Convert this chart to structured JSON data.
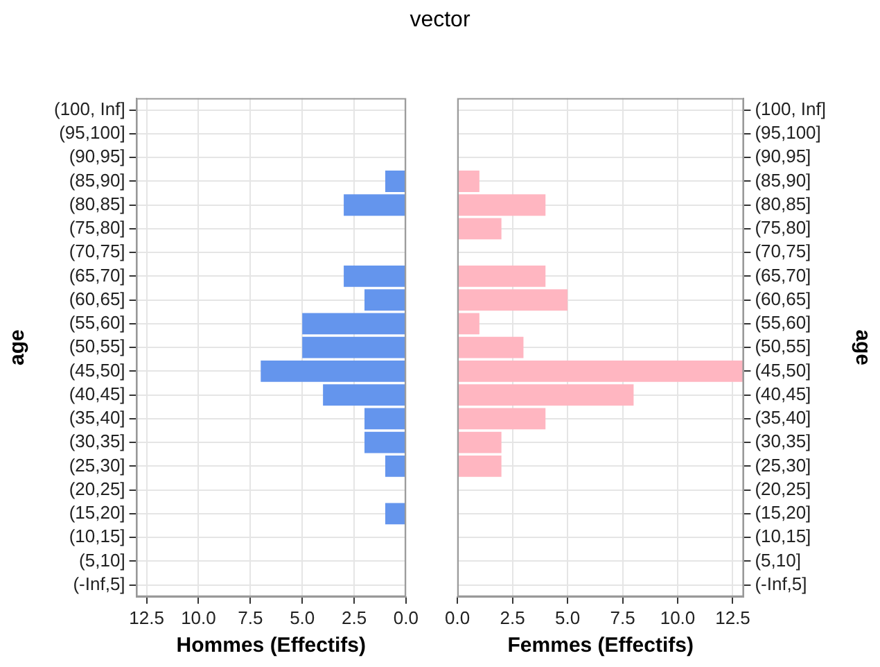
{
  "chart_data": [
    {
      "type": "bar",
      "orientation": "horizontal",
      "title": "vector",
      "xlabel": "Hommes (Effectifs)",
      "ylabel": "age",
      "grid": true,
      "color": "#6495ed",
      "categories": [
        "(100, Inf]",
        "(95,100]",
        "(90,95]",
        "(85,90]",
        "(80,85]",
        "(75,80]",
        "(70,75]",
        "(65,70]",
        "(60,65]",
        "(55,60]",
        "(50,55]",
        "(45,50]",
        "(40,45]",
        "(35,40]",
        "(30,35]",
        "(25,30]",
        "(20,25]",
        "(15,20]",
        "(10,15]",
        "(5,10]",
        "(-Inf,5]"
      ],
      "values": [
        0,
        0,
        0,
        1,
        3,
        0,
        0,
        3,
        2,
        5,
        5,
        7,
        4,
        2,
        2,
        1,
        0,
        1,
        0,
        0,
        0
      ],
      "xlim": [
        13,
        0
      ],
      "xticks": [
        12.5,
        {
          "value": 10,
          "label": "10.0"
        },
        7.5,
        {
          "value": 5,
          "label": "5.0"
        },
        2.5,
        {
          "value": 0,
          "label": "0.0"
        }
      ]
    },
    {
      "type": "bar",
      "orientation": "horizontal",
      "xlabel": "Femmes (Effectifs)",
      "ylabel": "age",
      "grid": true,
      "color": "#ffb6c1",
      "categories": [
        "(100, Inf]",
        "(95,100]",
        "(90,95]",
        "(85,90]",
        "(80,85]",
        "(75,80]",
        "(70,75]",
        "(65,70]",
        "(60,65]",
        "(55,60]",
        "(50,55]",
        "(45,50]",
        "(40,45]",
        "(35,40]",
        "(30,35]",
        "(25,30]",
        "(20,25]",
        "(15,20]",
        "(10,15]",
        "(5,10]",
        "(-Inf,5]"
      ],
      "values": [
        0,
        0,
        0,
        1,
        4,
        2,
        0,
        4,
        5,
        1,
        3,
        13,
        8,
        4,
        2,
        2,
        0,
        0,
        0,
        0,
        0
      ],
      "xlim": [
        0,
        13
      ],
      "xticks": [
        {
          "value": 0,
          "label": "0.0"
        },
        2.5,
        {
          "value": 5,
          "label": "5.0"
        },
        7.5,
        {
          "value": 10,
          "label": "10.0"
        },
        12.5
      ]
    }
  ]
}
